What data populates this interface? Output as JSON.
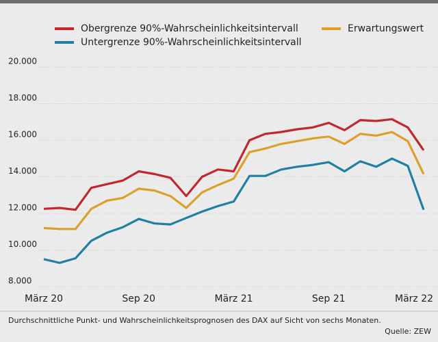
{
  "chart_data": {
    "type": "line",
    "categories": [
      "März 20",
      null,
      null,
      null,
      null,
      null,
      "Sep 20",
      null,
      null,
      null,
      null,
      null,
      "März 21",
      null,
      null,
      null,
      null,
      null,
      "Sep 21",
      null,
      null,
      null,
      null,
      null,
      "März 22"
    ],
    "series": [
      {
        "name": "Obergrenze 90%-Wahrscheinlichkeitsintervall",
        "color": "#c0282e",
        "values": [
          11950,
          12000,
          11900,
          13100,
          13300,
          13500,
          14000,
          13850,
          13650,
          12650,
          13700,
          14100,
          14000,
          15700,
          16050,
          16150,
          16300,
          16400,
          16650,
          16250,
          16800,
          16750,
          16850,
          16400,
          15150
        ]
      },
      {
        "name": "Erwartungswert",
        "color": "#dca02a",
        "values": [
          10900,
          10850,
          10850,
          11950,
          12400,
          12550,
          13050,
          12950,
          12650,
          12000,
          12850,
          13250,
          13600,
          15050,
          15250,
          15500,
          15650,
          15800,
          15900,
          15500,
          16050,
          15950,
          16150,
          15650,
          13850
        ]
      },
      {
        "name": "Untergrenze 90%-Wahrscheinlichkeitsintervall",
        "color": "#1f7fa6",
        "values": [
          9200,
          9000,
          9250,
          10200,
          10650,
          10950,
          11400,
          11150,
          11100,
          11450,
          11800,
          12100,
          12350,
          13750,
          13750,
          14100,
          14250,
          14350,
          14500,
          14000,
          14550,
          14250,
          14700,
          14300,
          11900
        ]
      }
    ],
    "ylim": [
      8000,
      20000
    ],
    "yticks": [
      {
        "value": 8000,
        "label": "8.000"
      },
      {
        "value": 10000,
        "label": "10.000"
      },
      {
        "value": 12000,
        "label": "12.000"
      },
      {
        "value": 14000,
        "label": "14.000"
      },
      {
        "value": 16000,
        "label": "16.000"
      },
      {
        "value": 18000,
        "label": "18.000"
      },
      {
        "value": 20000,
        "label": "20.000"
      }
    ],
    "grid": true,
    "caption": "Durchschnittliche Punkt- und Wahrscheinlichkeitsprognosen des DAX auf Sicht von sechs Monaten.",
    "source": "Quelle: ZEW"
  }
}
